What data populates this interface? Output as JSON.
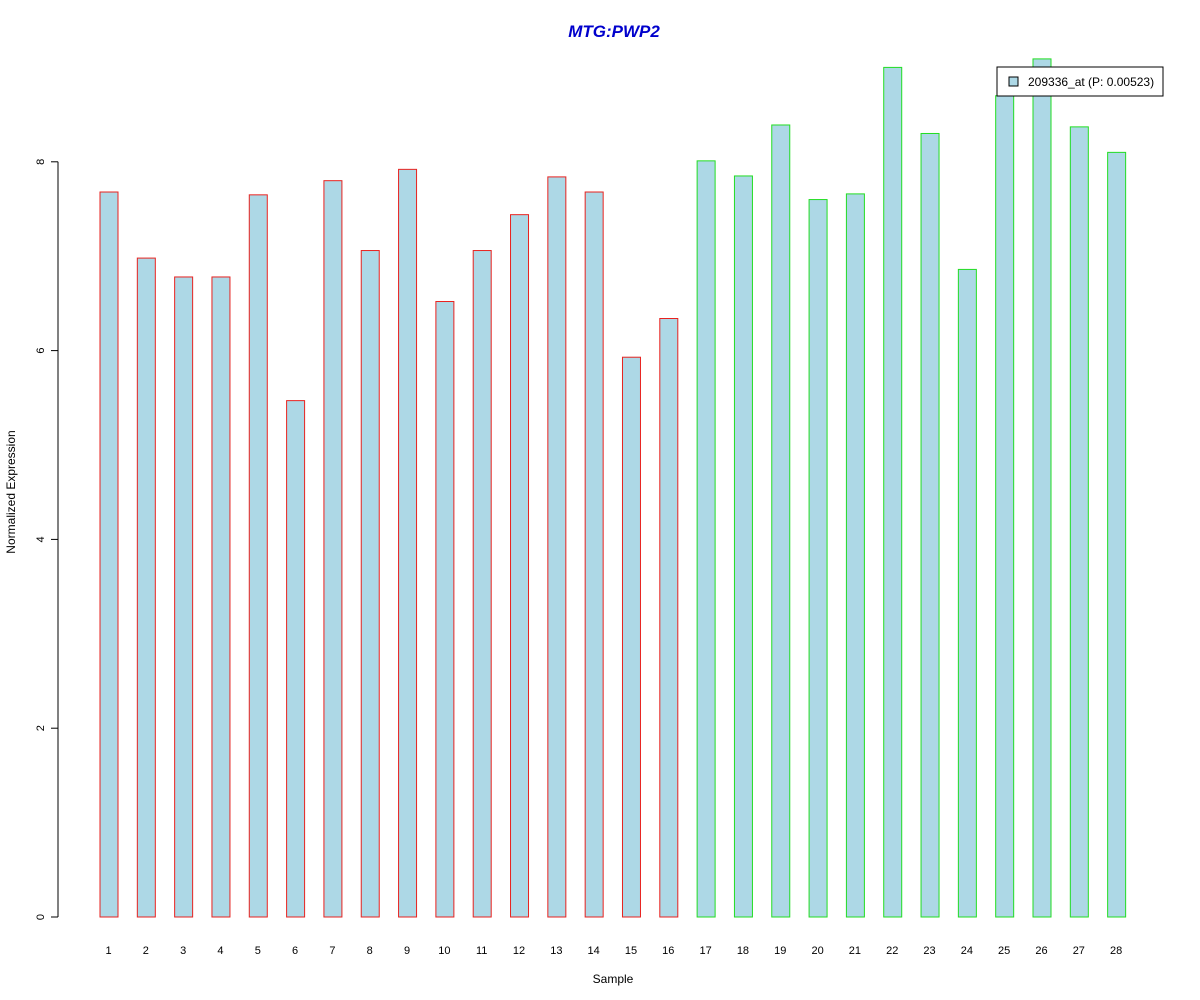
{
  "chart_data": {
    "type": "bar",
    "title": "MTG:PWP2",
    "xlabel": "Sample",
    "ylabel": "Normalized Expression",
    "ylim": [
      0,
      9.2
    ],
    "yticks": [
      0,
      2,
      4,
      6,
      8
    ],
    "grid": false,
    "legend_position": "top-right",
    "categories": [
      "1",
      "2",
      "3",
      "4",
      "5",
      "6",
      "7",
      "8",
      "9",
      "10",
      "11",
      "12",
      "13",
      "14",
      "15",
      "16",
      "17",
      "18",
      "19",
      "20",
      "21",
      "22",
      "23",
      "24",
      "25",
      "26",
      "27",
      "28"
    ],
    "series": [
      {
        "name": "209336_at (P: 0.00523)",
        "values": [
          7.68,
          6.98,
          6.78,
          6.78,
          7.65,
          5.47,
          7.8,
          7.06,
          7.92,
          6.52,
          7.06,
          7.44,
          7.84,
          7.68,
          5.93,
          6.34,
          8.01,
          7.85,
          8.39,
          7.6,
          7.66,
          9.0,
          8.3,
          6.86,
          8.7,
          9.09,
          8.37,
          8.1
        ]
      }
    ],
    "groups": [
      {
        "samples": [
          1,
          2,
          3,
          4,
          5,
          6,
          7,
          8,
          9,
          10,
          11,
          12,
          13,
          14,
          15,
          16
        ],
        "border_color": "#e8221f"
      },
      {
        "samples": [
          17,
          18,
          19,
          20,
          21,
          22,
          23,
          24,
          25,
          26,
          27,
          28
        ],
        "border_color": "#22dd22"
      }
    ],
    "colors": {
      "bar_fill": "#add8e6",
      "title": "#0000cc",
      "axis": "#000000"
    }
  }
}
